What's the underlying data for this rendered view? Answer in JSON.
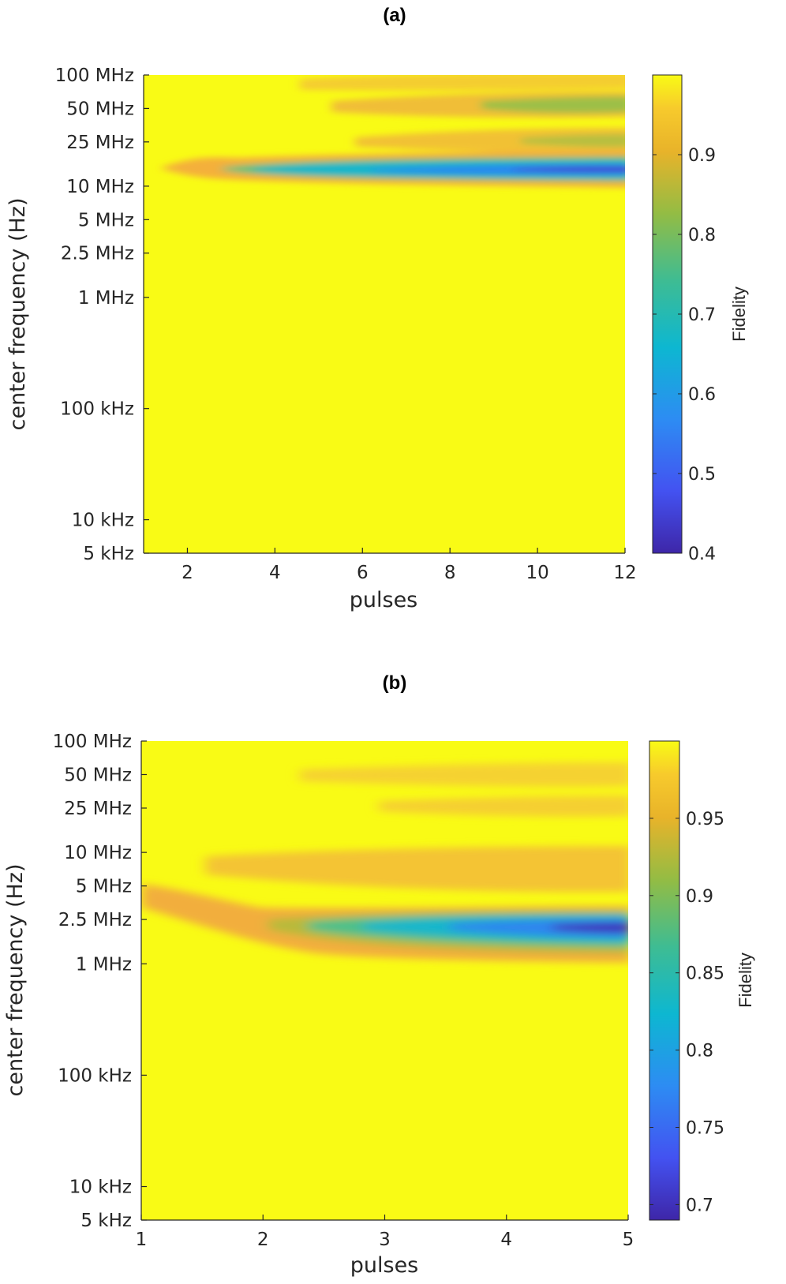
{
  "chart_data": [
    {
      "type": "heatmap",
      "title": "(a)",
      "xlabel": "pulses",
      "ylabel": "center frequency (Hz)",
      "xlim": [
        1,
        12
      ],
      "x_ticks": [
        2,
        4,
        6,
        8,
        10,
        12
      ],
      "y_scale": "log",
      "ylim": [
        5000,
        100000000
      ],
      "y_ticks": [
        {
          "value": 100000000,
          "label": "100 MHz"
        },
        {
          "value": 50000000,
          "label": "50 MHz"
        },
        {
          "value": 25000000,
          "label": "25 MHz"
        },
        {
          "value": 10000000,
          "label": "10 MHz"
        },
        {
          "value": 5000000,
          "label": "5 MHz"
        },
        {
          "value": 2500000,
          "label": "2.5 MHz"
        },
        {
          "value": 1000000,
          "label": "1 MHz"
        },
        {
          "value": 100000,
          "label": "100 kHz"
        },
        {
          "value": 10000,
          "label": "10 kHz"
        },
        {
          "value": 5000,
          "label": "5 kHz"
        }
      ],
      "colorbar": {
        "label": "Fidelity",
        "min": 0.4,
        "max": 1.0,
        "ticks": [
          "0.4",
          "0.5",
          "0.6",
          "0.7",
          "0.8",
          "0.9"
        ],
        "tick_values": [
          0.4,
          0.5,
          0.6,
          0.7,
          0.8,
          0.9
        ]
      },
      "colormap": "parula",
      "features": [
        {
          "center_hz": 14000000,
          "onset_pulses": 2,
          "min_fidelity": 0.42,
          "min_at_pulses": 12
        },
        {
          "center_hz": 60000000,
          "onset_pulses": 6,
          "min_fidelity": 0.82,
          "min_at_pulses": 12
        },
        {
          "center_hz": 22000000,
          "onset_pulses": 8,
          "min_fidelity": 0.84,
          "min_at_pulses": 12
        }
      ]
    },
    {
      "type": "heatmap",
      "title": "(b)",
      "xlabel": "pulses",
      "ylabel": "center frequency (Hz)",
      "xlim": [
        1,
        5
      ],
      "x_ticks": [
        1,
        2,
        3,
        4,
        5
      ],
      "y_scale": "log",
      "ylim": [
        5000,
        100000000
      ],
      "y_ticks": [
        {
          "value": 100000000,
          "label": "100 MHz"
        },
        {
          "value": 50000000,
          "label": "50 MHz"
        },
        {
          "value": 25000000,
          "label": "25 MHz"
        },
        {
          "value": 10000000,
          "label": "10 MHz"
        },
        {
          "value": 5000000,
          "label": "5 MHz"
        },
        {
          "value": 2500000,
          "label": "2.5 MHz"
        },
        {
          "value": 1000000,
          "label": "1 MHz"
        },
        {
          "value": 100000,
          "label": "100 kHz"
        },
        {
          "value": 10000,
          "label": "10 kHz"
        },
        {
          "value": 5000,
          "label": "5 kHz"
        }
      ],
      "colorbar": {
        "label": "Fidelity",
        "min": 0.69,
        "max": 1.0,
        "ticks": [
          "0.7",
          "0.75",
          "0.8",
          "0.85",
          "0.9",
          "0.95"
        ],
        "tick_values": [
          0.7,
          0.75,
          0.8,
          0.85,
          0.9,
          0.95
        ]
      },
      "colormap": "parula",
      "features": [
        {
          "center_hz": 2500000,
          "onset_pulses": 1.2,
          "min_fidelity": 0.69,
          "min_at_pulses": 5
        },
        {
          "center_hz": 6000000,
          "onset_pulses": 3,
          "min_fidelity": 0.95,
          "min_at_pulses": 5
        }
      ]
    }
  ]
}
